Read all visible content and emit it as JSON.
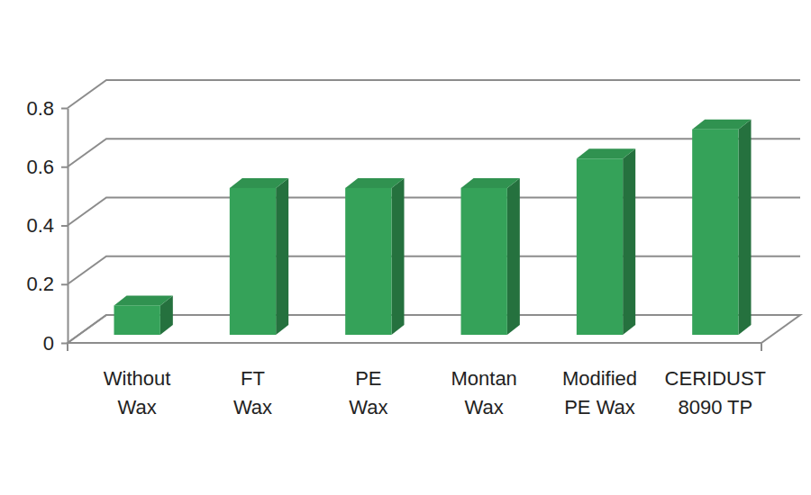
{
  "chart_data": {
    "type": "bar",
    "categories": [
      "Without Wax",
      "FT Wax",
      "PE Wax",
      "Montan Wax",
      "Modified PE Wax",
      "CERIDUST 8090 TP"
    ],
    "values": [
      0.1,
      0.5,
      0.5,
      0.5,
      0.6,
      0.7
    ],
    "color": "#35a259",
    "ylim": [
      0,
      0.8
    ],
    "yticks": [
      0,
      0.2,
      0.4,
      0.6,
      0.8
    ],
    "grid": true
  }
}
